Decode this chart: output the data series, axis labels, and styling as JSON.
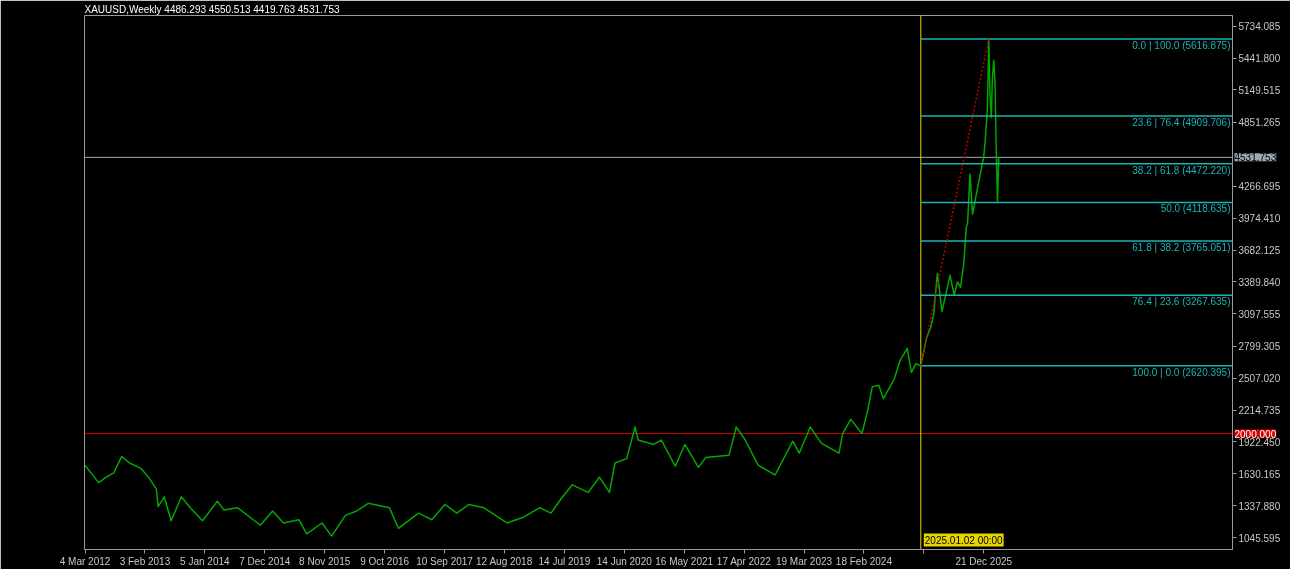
{
  "chart_data": {
    "type": "line",
    "title": "XAUUSD,Weekly  4486.293 4550.513 4419.763 4531.753",
    "xlim": [
      "2012-03-01",
      "2029-10-16"
    ],
    "xticks": [
      {
        "value": "2012-03-04",
        "label": "4 Mar 2012"
      },
      {
        "value": "2013-02-03",
        "label": "3 Feb 2013"
      },
      {
        "value": "2014-01-05",
        "label": "5 Jan 2014"
      },
      {
        "value": "2014-12-07",
        "label": "7 Dec 2014"
      },
      {
        "value": "2015-11-08",
        "label": "8 Nov 2015"
      },
      {
        "value": "2016-10-09",
        "label": "9 Oct 2016"
      },
      {
        "value": "2017-09-10",
        "label": "10 Sep 2017"
      },
      {
        "value": "2018-08-12",
        "label": "12 Aug 2018"
      },
      {
        "value": "2019-07-14",
        "label": "14 Jul 2019"
      },
      {
        "value": "2020-06-14",
        "label": "14 Jun 2020"
      },
      {
        "value": "2021-05-16",
        "label": "16 May 2021"
      },
      {
        "value": "2022-04-17",
        "label": "17 Apr 2022"
      },
      {
        "value": "2023-03-19",
        "label": "19 Mar 2023"
      },
      {
        "value": "2024-02-18",
        "label": "18 Feb 2024"
      },
      {
        "value": "2025-01-19",
        "label": null
      },
      {
        "value": "2025-12-21",
        "label": "21 Dec 2025"
      }
    ],
    "ylim": [
      937,
      5832
    ],
    "yticks": [
      5734.085,
      {
        "value": 5441.8,
        "label": "5441.800"
      },
      5149.515,
      4851.265,
      4266.695,
      {
        "value": 3974.41,
        "label": "3974.410"
      },
      3682.125,
      {
        "value": 3389.84,
        "label": "3389.840"
      },
      3097.555,
      2799.305,
      {
        "value": 2507.02,
        "label": "2507.020"
      },
      2214.735,
      {
        "value": 1922.45,
        "label": "1922.450"
      },
      1630.165,
      {
        "value": 1337.88,
        "label": "1337.880"
      },
      1045.595
    ],
    "grid": false,
    "series": [
      {
        "color": "#00a800",
        "x": [
          "2012-03-04",
          "2012-05-19",
          "2012-07-01",
          "2012-08-12",
          "2012-09-26",
          "2012-11-08",
          "2013-01-12",
          "2013-02-23",
          "2013-04-08",
          "2013-04-18",
          "2013-05-22",
          "2013-06-30",
          "2013-08-26",
          "2013-10-20",
          "2013-12-23",
          "2014-03-16",
          "2014-04-22",
          "2014-07-07",
          "2014-11-12",
          "2015-01-20",
          "2015-03-22",
          "2015-06-16",
          "2015-07-30",
          "2015-10-24",
          "2015-12-17",
          "2016-03-03",
          "2016-05-06",
          "2016-07-09",
          "2016-11-05",
          "2016-12-26",
          "2017-04-17",
          "2017-07-01",
          "2017-09-12",
          "2017-11-18",
          "2018-01-25",
          "2018-04-18",
          "2018-08-26",
          "2018-11-22",
          "2019-02-26",
          "2019-04-30",
          "2019-06-25",
          "2019-08-28",
          "2019-11-24",
          "2020-01-27",
          "2020-03-23",
          "2020-04-23",
          "2020-06-27",
          "2020-08-14",
          "2020-08-31",
          "2020-11-26",
          "2021-01-08",
          "2021-03-27",
          "2021-05-20",
          "2021-08-04",
          "2021-09-14",
          "2022-01-22",
          "2022-03-04",
          "2022-04-20",
          "2022-07-05",
          "2022-10-08",
          "2023-01-15",
          "2023-02-20",
          "2023-04-23",
          "2023-06-25",
          "2023-10-01",
          "2023-10-22",
          "2023-12-06",
          "2024-02-07",
          "2024-03-10",
          "2024-04-05",
          "2024-05-12",
          "2024-06-06",
          "2024-08-06",
          "2024-09-08",
          "2024-10-18",
          "2024-11-10",
          "2024-12-06",
          "2025-01-02",
          "2025-02-04",
          "2025-02-26",
          "2025-03-15",
          "2025-04-05",
          "2025-05-01",
          "2025-06-15",
          "2025-07-08",
          "2025-07-27",
          "2025-08-13",
          "2025-08-31",
          "2025-09-14",
          "2025-09-21",
          "2025-10-05",
          "2025-10-19",
          "2025-11-16",
          "2025-12-21",
          "2025-12-28",
          "2026-01-11",
          "2026-01-18",
          "2026-01-25",
          "2026-02-01",
          "2026-02-08",
          "2026-02-15",
          "2026-02-22",
          "2026-03-01",
          "2026-03-08",
          "2026-03-15"
        ],
        "values": [
          1710,
          1550,
          1600,
          1640,
          1790,
          1730,
          1680,
          1600,
          1490,
          1330,
          1420,
          1200,
          1420,
          1310,
          1200,
          1380,
          1300,
          1320,
          1160,
          1290,
          1180,
          1210,
          1080,
          1180,
          1060,
          1250,
          1290,
          1360,
          1320,
          1130,
          1270,
          1210,
          1350,
          1270,
          1350,
          1320,
          1180,
          1230,
          1320,
          1270,
          1400,
          1530,
          1460,
          1600,
          1460,
          1730,
          1770,
          2060,
          1940,
          1900,
          1940,
          1700,
          1900,
          1690,
          1780,
          1800,
          2060,
          1950,
          1710,
          1620,
          1930,
          1820,
          2060,
          1910,
          1820,
          2000,
          2130,
          2000,
          2210,
          2430,
          2440,
          2320,
          2500,
          2670,
          2780,
          2560,
          2640,
          2620,
          2880,
          2970,
          3090,
          3470,
          3120,
          3450,
          3270,
          3390,
          3340,
          3560,
          3890,
          3920,
          4380,
          4010,
          4250,
          4540,
          4660,
          4990,
          5610,
          5110,
          4900,
          5270,
          5420,
          5220,
          4600,
          4120,
          4530
        ]
      },
      {
        "name": "0.0 | 100.0 (5616.875)",
        "color": "#1ab4b4",
        "x": [
          "2025-01-02",
          "2029-10-16"
        ],
        "values": [
          5616.875,
          5616.875
        ]
      },
      {
        "name": "23.6 | 76.4 (4909.706)",
        "color": "#1ab4b4",
        "x": [
          "2025-01-02",
          "2029-10-16"
        ],
        "values": [
          4909.706,
          4909.706
        ]
      },
      {
        "name": "38.2 | 61.8 (4472.220)",
        "color": "#1ab4b4",
        "x": [
          "2025-01-02",
          "2029-10-16"
        ],
        "values": [
          4472.22,
          4472.22
        ]
      },
      {
        "name": "50.0 (4118.635)",
        "color": "#1ab4b4",
        "x": [
          "2025-01-02",
          "2029-10-16"
        ],
        "values": [
          4118.635,
          4118.635
        ]
      },
      {
        "name": "61.8 | 38.2 (3765.051)",
        "color": "#1ab4b4",
        "x": [
          "2025-01-02",
          "2029-10-16"
        ],
        "values": [
          3765.051,
          3765.051
        ]
      },
      {
        "name": "76.4 | 23.6 (3267.635)",
        "color": "#1ab4b4",
        "x": [
          "2025-01-02",
          "2029-10-16"
        ],
        "values": [
          3267.635,
          3267.635
        ]
      },
      {
        "name": "100.0 | 0.0 (2620.395)",
        "color": "#1ab4b4",
        "x": [
          "2025-01-02",
          "2029-10-16"
        ],
        "values": [
          2620.395,
          2620.395
        ]
      },
      {
        "color": "#c00000",
        "line_style": "dotted",
        "x": [
          "2025-01-02",
          "2026-01-18"
        ],
        "values": [
          2620.395,
          5616.875
        ]
      }
    ],
    "ref_lines": [
      {
        "axis": "y",
        "value": 4531.753,
        "label": "4531.753",
        "color": "#9aaab8"
      },
      {
        "axis": "y",
        "value": 2000,
        "label": "2000.000",
        "color": "#d80000"
      },
      {
        "axis": "x",
        "value": "2025-01-02",
        "label": "2025.01.02 00:00",
        "color": "#e6d600"
      }
    ]
  }
}
